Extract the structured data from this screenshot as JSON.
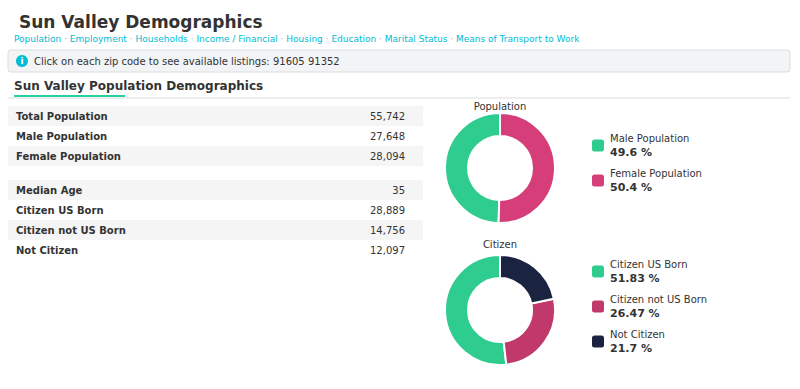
{
  "title": "Sun Valley Demographics",
  "nav_links": [
    "Population",
    "Employment",
    "Households",
    "Income / Financial",
    "Housing",
    "Education",
    "Marital Status",
    "Means of Transport to Work"
  ],
  "nav_sep": " · ",
  "info_icon": "i",
  "info_text": "Click on each zip code to see available listings: 91605 91352",
  "section_title": "Sun Valley Population Demographics",
  "tables": [
    [
      {
        "label": "Total Population",
        "value": "55,742"
      },
      {
        "label": "Male Population",
        "value": "27,648"
      },
      {
        "label": "Female Population",
        "value": "28,094"
      }
    ],
    [
      {
        "label": "Median Age",
        "value": "35"
      },
      {
        "label": "Citizen US Born",
        "value": "28,889"
      },
      {
        "label": "Citizen not US Born",
        "value": "14,756"
      },
      {
        "label": "Not Citizen",
        "value": "12,097"
      }
    ]
  ],
  "chart_data": [
    {
      "type": "pie",
      "title": "Population",
      "categories": [
        "Male Population",
        "Female Population"
      ],
      "values": [
        49.6,
        50.4
      ],
      "value_labels": [
        "49.6 %",
        "50.4 %"
      ],
      "colors": [
        "#2ecc8e",
        "#d63e7a"
      ],
      "legend": "right"
    },
    {
      "type": "pie",
      "title": "Citizen",
      "categories": [
        "Citizen US Born",
        "Citizen not US Born",
        "Not Citizen"
      ],
      "values": [
        51.83,
        26.47,
        21.7
      ],
      "value_labels": [
        "51.83 %",
        "26.47 %",
        "21.7 %"
      ],
      "colors": [
        "#2ecc8e",
        "#c0396a",
        "#1a2340"
      ],
      "legend": "right"
    }
  ]
}
